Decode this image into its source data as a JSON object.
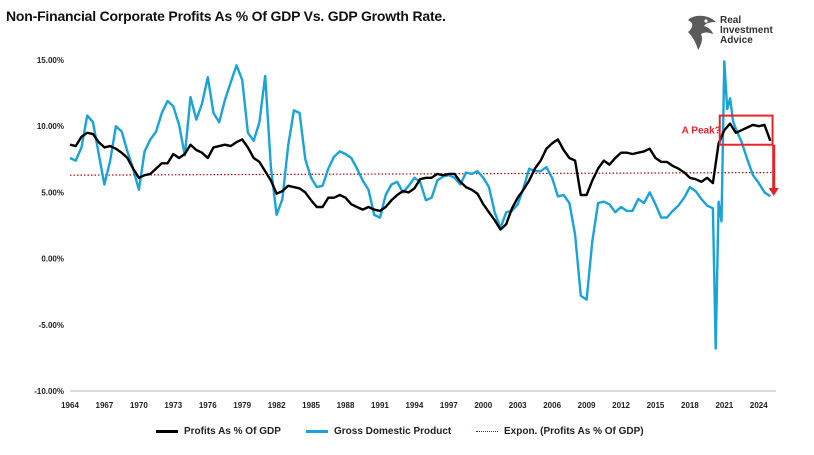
{
  "header": {
    "title": "Non-Financial Corporate Profits As % Of GDP Vs. GDP Growth Rate.",
    "logo_text": [
      "Real",
      "Investment",
      "Advice"
    ],
    "logo_icon": "eagle-head-icon"
  },
  "colors": {
    "profits": "#000000",
    "gdp": "#1aa3d9",
    "expon": "#cc0000",
    "annotation": "#e8242b",
    "axis_text": "#222222"
  },
  "legend": {
    "items": [
      {
        "label": "Profits As % Of GDP",
        "style": "solid-black"
      },
      {
        "label": "Gross Domestic Product",
        "style": "solid-blue"
      },
      {
        "label": "Expon. (Profits As % Of GDP)",
        "style": "dotted-red"
      }
    ],
    "placement": "bottom"
  },
  "chart_data": {
    "type": "line",
    "xlabel": "",
    "ylabel": "",
    "ylim": [
      -10,
      15
    ],
    "xlim": [
      1964,
      2025.5
    ],
    "y_ticks": [
      15,
      10,
      5,
      0,
      -5,
      -10
    ],
    "y_tick_labels": [
      "15.00%",
      "10.00%",
      "5.00%",
      "0.00%",
      "-5.00%",
      "-10.00%"
    ],
    "x_ticks": [
      1964,
      1967,
      1970,
      1973,
      1976,
      1979,
      1982,
      1985,
      1988,
      1991,
      1994,
      1997,
      2000,
      2003,
      2006,
      2009,
      2012,
      2015,
      2018,
      2021,
      2024
    ],
    "x_tick_labels": [
      "1964",
      "1967",
      "1970",
      "1973",
      "1976",
      "1979",
      "1982",
      "1985",
      "1988",
      "1991",
      "1994",
      "1997",
      "2000",
      "2003",
      "2006",
      "2009",
      "2012",
      "2015",
      "2018",
      "2021",
      "2024"
    ],
    "grid": false,
    "series": [
      {
        "name": "Profits As % Of GDP",
        "x": [
          1964,
          1964.5,
          1965,
          1965.5,
          1966,
          1966.5,
          1967,
          1967.5,
          1968,
          1968.5,
          1969,
          1969.5,
          1970,
          1970.5,
          1971,
          1971.5,
          1972,
          1972.5,
          1973,
          1973.5,
          1974,
          1974.5,
          1975,
          1975.5,
          1976,
          1976.5,
          1977,
          1977.5,
          1978,
          1978.5,
          1979,
          1979.5,
          1980,
          1980.5,
          1981,
          1981.5,
          1982,
          1982.5,
          1983,
          1983.5,
          1984,
          1984.5,
          1985,
          1985.5,
          1986,
          1986.5,
          1987,
          1987.5,
          1988,
          1988.5,
          1989,
          1989.5,
          1990,
          1990.5,
          1991,
          1991.5,
          1992,
          1992.5,
          1993,
          1993.5,
          1994,
          1994.5,
          1995,
          1995.5,
          1996,
          1996.5,
          1997,
          1997.5,
          1998,
          1998.5,
          1999,
          1999.5,
          2000,
          2000.5,
          2001,
          2001.5,
          2002,
          2002.5,
          2003,
          2003.5,
          2004,
          2004.5,
          2005,
          2005.5,
          2006,
          2006.5,
          2007,
          2007.5,
          2008,
          2008.5,
          2009,
          2009.5,
          2010,
          2010.5,
          2011,
          2011.5,
          2012,
          2012.5,
          2013,
          2013.5,
          2014,
          2014.5,
          2015,
          2015.5,
          2016,
          2016.5,
          2017,
          2017.5,
          2018,
          2018.5,
          2019,
          2019.5,
          2020,
          2020.5,
          2021,
          2021.5,
          2022,
          2022.5,
          2023,
          2023.5,
          2024,
          2024.5,
          2025
        ],
        "values": [
          8.6,
          8.5,
          9.2,
          9.5,
          9.4,
          8.8,
          8.4,
          8.5,
          8.3,
          8.0,
          7.6,
          6.8,
          6.1,
          6.3,
          6.4,
          6.8,
          7.2,
          7.2,
          7.9,
          7.6,
          7.9,
          8.6,
          8.2,
          8.0,
          7.6,
          8.4,
          8.5,
          8.6,
          8.5,
          8.8,
          9.0,
          8.4,
          7.6,
          7.3,
          6.6,
          5.9,
          4.9,
          5.1,
          5.5,
          5.4,
          5.3,
          5.0,
          4.4,
          3.9,
          3.9,
          4.6,
          4.6,
          4.8,
          4.6,
          4.1,
          3.9,
          3.7,
          3.9,
          3.7,
          3.6,
          3.9,
          4.4,
          4.8,
          5.1,
          5.0,
          5.3,
          6.0,
          6.1,
          6.1,
          6.4,
          6.3,
          6.4,
          6.4,
          5.8,
          5.4,
          5.2,
          4.9,
          4.1,
          3.5,
          2.9,
          2.2,
          2.6,
          3.8,
          4.6,
          5.2,
          5.9,
          6.8,
          7.4,
          8.3,
          8.7,
          9.0,
          8.2,
          7.6,
          7.4,
          4.8,
          4.8,
          5.9,
          6.8,
          7.4,
          7.1,
          7.6,
          8.0,
          8.0,
          7.9,
          8.0,
          8.1,
          8.3,
          7.6,
          7.3,
          7.3,
          7.0,
          6.8,
          6.5,
          6.1,
          6.0,
          5.8,
          6.1,
          5.7,
          8.7,
          9.7,
          10.2,
          9.5,
          9.7,
          9.9,
          10.1,
          10.0,
          10.1,
          8.9
        ]
      },
      {
        "name": "Gross Domestic Product",
        "x": [
          1964,
          1964.5,
          1965,
          1965.5,
          1966,
          1966.5,
          1967,
          1967.5,
          1968,
          1968.5,
          1969,
          1969.5,
          1970,
          1970.5,
          1971,
          1971.5,
          1972,
          1972.5,
          1973,
          1973.5,
          1974,
          1974.5,
          1975,
          1975.5,
          1976,
          1976.5,
          1977,
          1977.5,
          1978,
          1978.5,
          1979,
          1979.5,
          1980,
          1980.5,
          1981,
          1981.5,
          1982,
          1982.5,
          1983,
          1983.5,
          1984,
          1984.5,
          1985,
          1985.5,
          1986,
          1986.5,
          1987,
          1987.5,
          1988,
          1988.5,
          1989,
          1989.5,
          1990,
          1990.5,
          1991,
          1991.5,
          1992,
          1992.5,
          1993,
          1993.5,
          1994,
          1994.5,
          1995,
          1995.5,
          1996,
          1996.5,
          1997,
          1997.5,
          1998,
          1998.5,
          1999,
          1999.5,
          2000,
          2000.5,
          2001,
          2001.5,
          2002,
          2002.5,
          2003,
          2003.5,
          2004,
          2004.5,
          2005,
          2005.5,
          2006,
          2006.5,
          2007,
          2007.5,
          2008,
          2008.5,
          2009,
          2009.5,
          2010,
          2010.5,
          2011,
          2011.5,
          2012,
          2012.5,
          2013,
          2013.5,
          2014,
          2014.5,
          2015,
          2015.5,
          2016,
          2016.5,
          2017,
          2017.5,
          2018,
          2018.5,
          2019,
          2019.5,
          2020,
          2020.25,
          2020.5,
          2020.75,
          2021,
          2021.25,
          2021.5,
          2021.75,
          2022,
          2022.5,
          2023,
          2023.5,
          2024,
          2024.5,
          2025
        ],
        "values": [
          7.6,
          7.4,
          8.4,
          10.8,
          10.3,
          7.9,
          5.6,
          7.4,
          10.0,
          9.6,
          8.1,
          6.8,
          5.2,
          8.1,
          9.0,
          9.6,
          11.0,
          11.9,
          11.5,
          10.1,
          7.8,
          12.2,
          10.5,
          11.7,
          13.7,
          11.0,
          10.3,
          12.0,
          13.3,
          14.6,
          13.5,
          9.5,
          8.9,
          10.3,
          13.8,
          6.9,
          3.3,
          4.5,
          8.5,
          11.2,
          11.0,
          7.5,
          6.1,
          5.4,
          5.5,
          6.8,
          7.7,
          8.1,
          7.9,
          7.6,
          6.8,
          5.9,
          5.2,
          3.3,
          3.1,
          4.8,
          5.6,
          5.8,
          5.0,
          5.5,
          6.1,
          5.8,
          4.4,
          4.6,
          5.9,
          6.2,
          6.3,
          6.1,
          5.6,
          6.5,
          6.4,
          6.6,
          6.1,
          5.4,
          3.5,
          2.3,
          3.5,
          3.6,
          4.1,
          5.3,
          6.8,
          6.6,
          6.6,
          6.9,
          6.1,
          4.7,
          4.8,
          4.2,
          1.8,
          -2.8,
          -3.1,
          1.3,
          4.2,
          4.3,
          4.1,
          3.5,
          3.9,
          3.6,
          3.6,
          4.5,
          4.2,
          5.0,
          4.1,
          3.1,
          3.1,
          3.6,
          4.0,
          4.6,
          5.4,
          5.1,
          4.5,
          4.0,
          3.8,
          -6.8,
          4.3,
          2.8,
          14.9,
          11.3,
          12.1,
          10.4,
          9.8,
          8.8,
          7.5,
          6.3,
          5.7,
          5.0,
          4.7
        ]
      }
    ],
    "trendline": {
      "name": "Expon. (Profits As % Of GDP)",
      "type": "exponential",
      "start_value": 6.3,
      "end_value": 6.5
    },
    "annotations": [
      {
        "text": "A Peak?",
        "type": "box",
        "x_range": [
          2020.6,
          2025.2
        ],
        "y_range": [
          8.6,
          10.8
        ]
      },
      {
        "type": "arrow",
        "direction": "down",
        "x": 2025.3,
        "from": 8.6,
        "to": 4.8
      }
    ]
  }
}
